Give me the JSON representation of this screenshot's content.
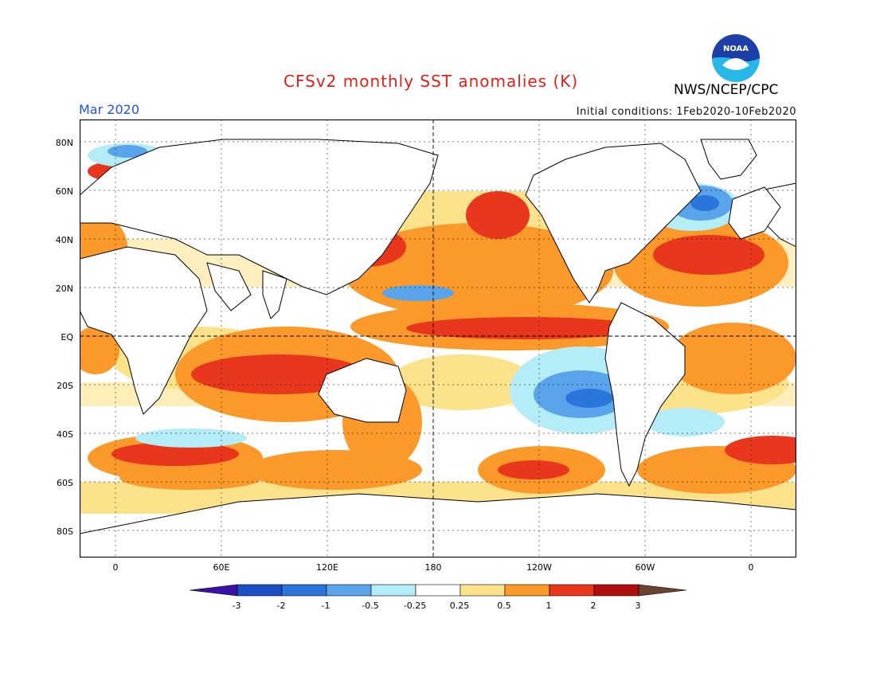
{
  "header": {
    "title": "CFSv2 monthly SST anomalies (K)",
    "agency": "NWS/NCEP/CPC",
    "month": "Mar 2020",
    "initial_conditions": "Initial conditions: 1Feb2020-10Feb2020",
    "logo_text": "NOAA"
  },
  "axes": {
    "lat_labels": [
      "80N",
      "60N",
      "40N",
      "20N",
      "EQ",
      "20S",
      "40S",
      "60S",
      "80S"
    ],
    "lon_labels": [
      "0",
      "60E",
      "120E",
      "180",
      "120W",
      "60W",
      "0"
    ]
  },
  "legend": {
    "labels": [
      "-3",
      "-2",
      "-1",
      "-0.5",
      "-0.25",
      "0.25",
      "0.5",
      "1",
      "2",
      "3"
    ],
    "colors": [
      "#3b12a8",
      "#1c4fc4",
      "#2a76db",
      "#5aa4ec",
      "#b4ecf8",
      "#ffffff",
      "#fde28c",
      "#fb9a2a",
      "#e8371c",
      "#b10f0f",
      "#6b4232"
    ]
  },
  "colors": {
    "title": "#e0201a",
    "month": "#2255dd",
    "land": "#ffffff",
    "noaa_blue": "#1f3fa8",
    "noaa_cyan": "#28b8e8"
  }
}
